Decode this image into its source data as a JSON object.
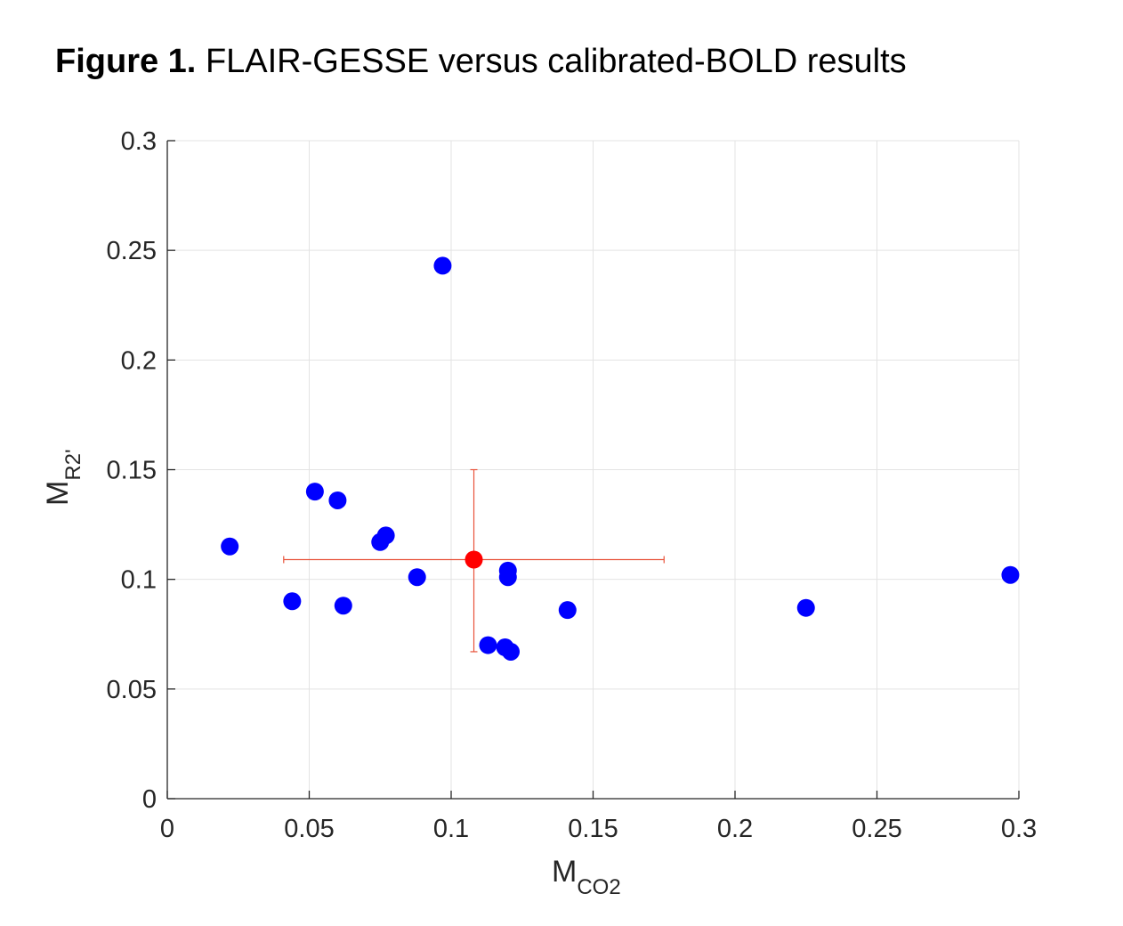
{
  "figure": {
    "label": "Figure 1.",
    "caption": "FLAIR-GESSE versus calibrated-BOLD results"
  },
  "chart_data": {
    "type": "scatter",
    "xlabel": {
      "main": "M",
      "sub": "CO2"
    },
    "ylabel": {
      "main": "M",
      "sub": "R2'"
    },
    "xlim": [
      0,
      0.3
    ],
    "ylim": [
      0,
      0.3
    ],
    "xticks": [
      0,
      0.05,
      0.1,
      0.15,
      0.2,
      0.25,
      0.3
    ],
    "yticks": [
      0,
      0.05,
      0.1,
      0.15,
      0.2,
      0.25,
      0.3
    ],
    "xtick_labels": [
      "0",
      "0.05",
      "0.1",
      "0.15",
      "0.2",
      "0.25",
      "0.3"
    ],
    "ytick_labels": [
      "0",
      "0.05",
      "0.1",
      "0.15",
      "0.2",
      "0.25",
      "0.3"
    ],
    "grid": true,
    "series": [
      {
        "color": "#0000ff",
        "points": [
          [
            0.022,
            0.115
          ],
          [
            0.044,
            0.09
          ],
          [
            0.052,
            0.14
          ],
          [
            0.06,
            0.136
          ],
          [
            0.062,
            0.088
          ],
          [
            0.075,
            0.117
          ],
          [
            0.077,
            0.12
          ],
          [
            0.088,
            0.101
          ],
          [
            0.097,
            0.243
          ],
          [
            0.113,
            0.07
          ],
          [
            0.119,
            0.069
          ],
          [
            0.121,
            0.067
          ],
          [
            0.12,
            0.101
          ],
          [
            0.12,
            0.104
          ],
          [
            0.141,
            0.086
          ],
          [
            0.225,
            0.087
          ],
          [
            0.297,
            0.102
          ]
        ]
      }
    ],
    "mean_point": {
      "color": "#ff0000",
      "x": 0.108,
      "y": 0.109,
      "x_error": [
        0.041,
        0.175
      ],
      "y_error": [
        0.067,
        0.15
      ],
      "error_color": "#e8533a"
    }
  }
}
